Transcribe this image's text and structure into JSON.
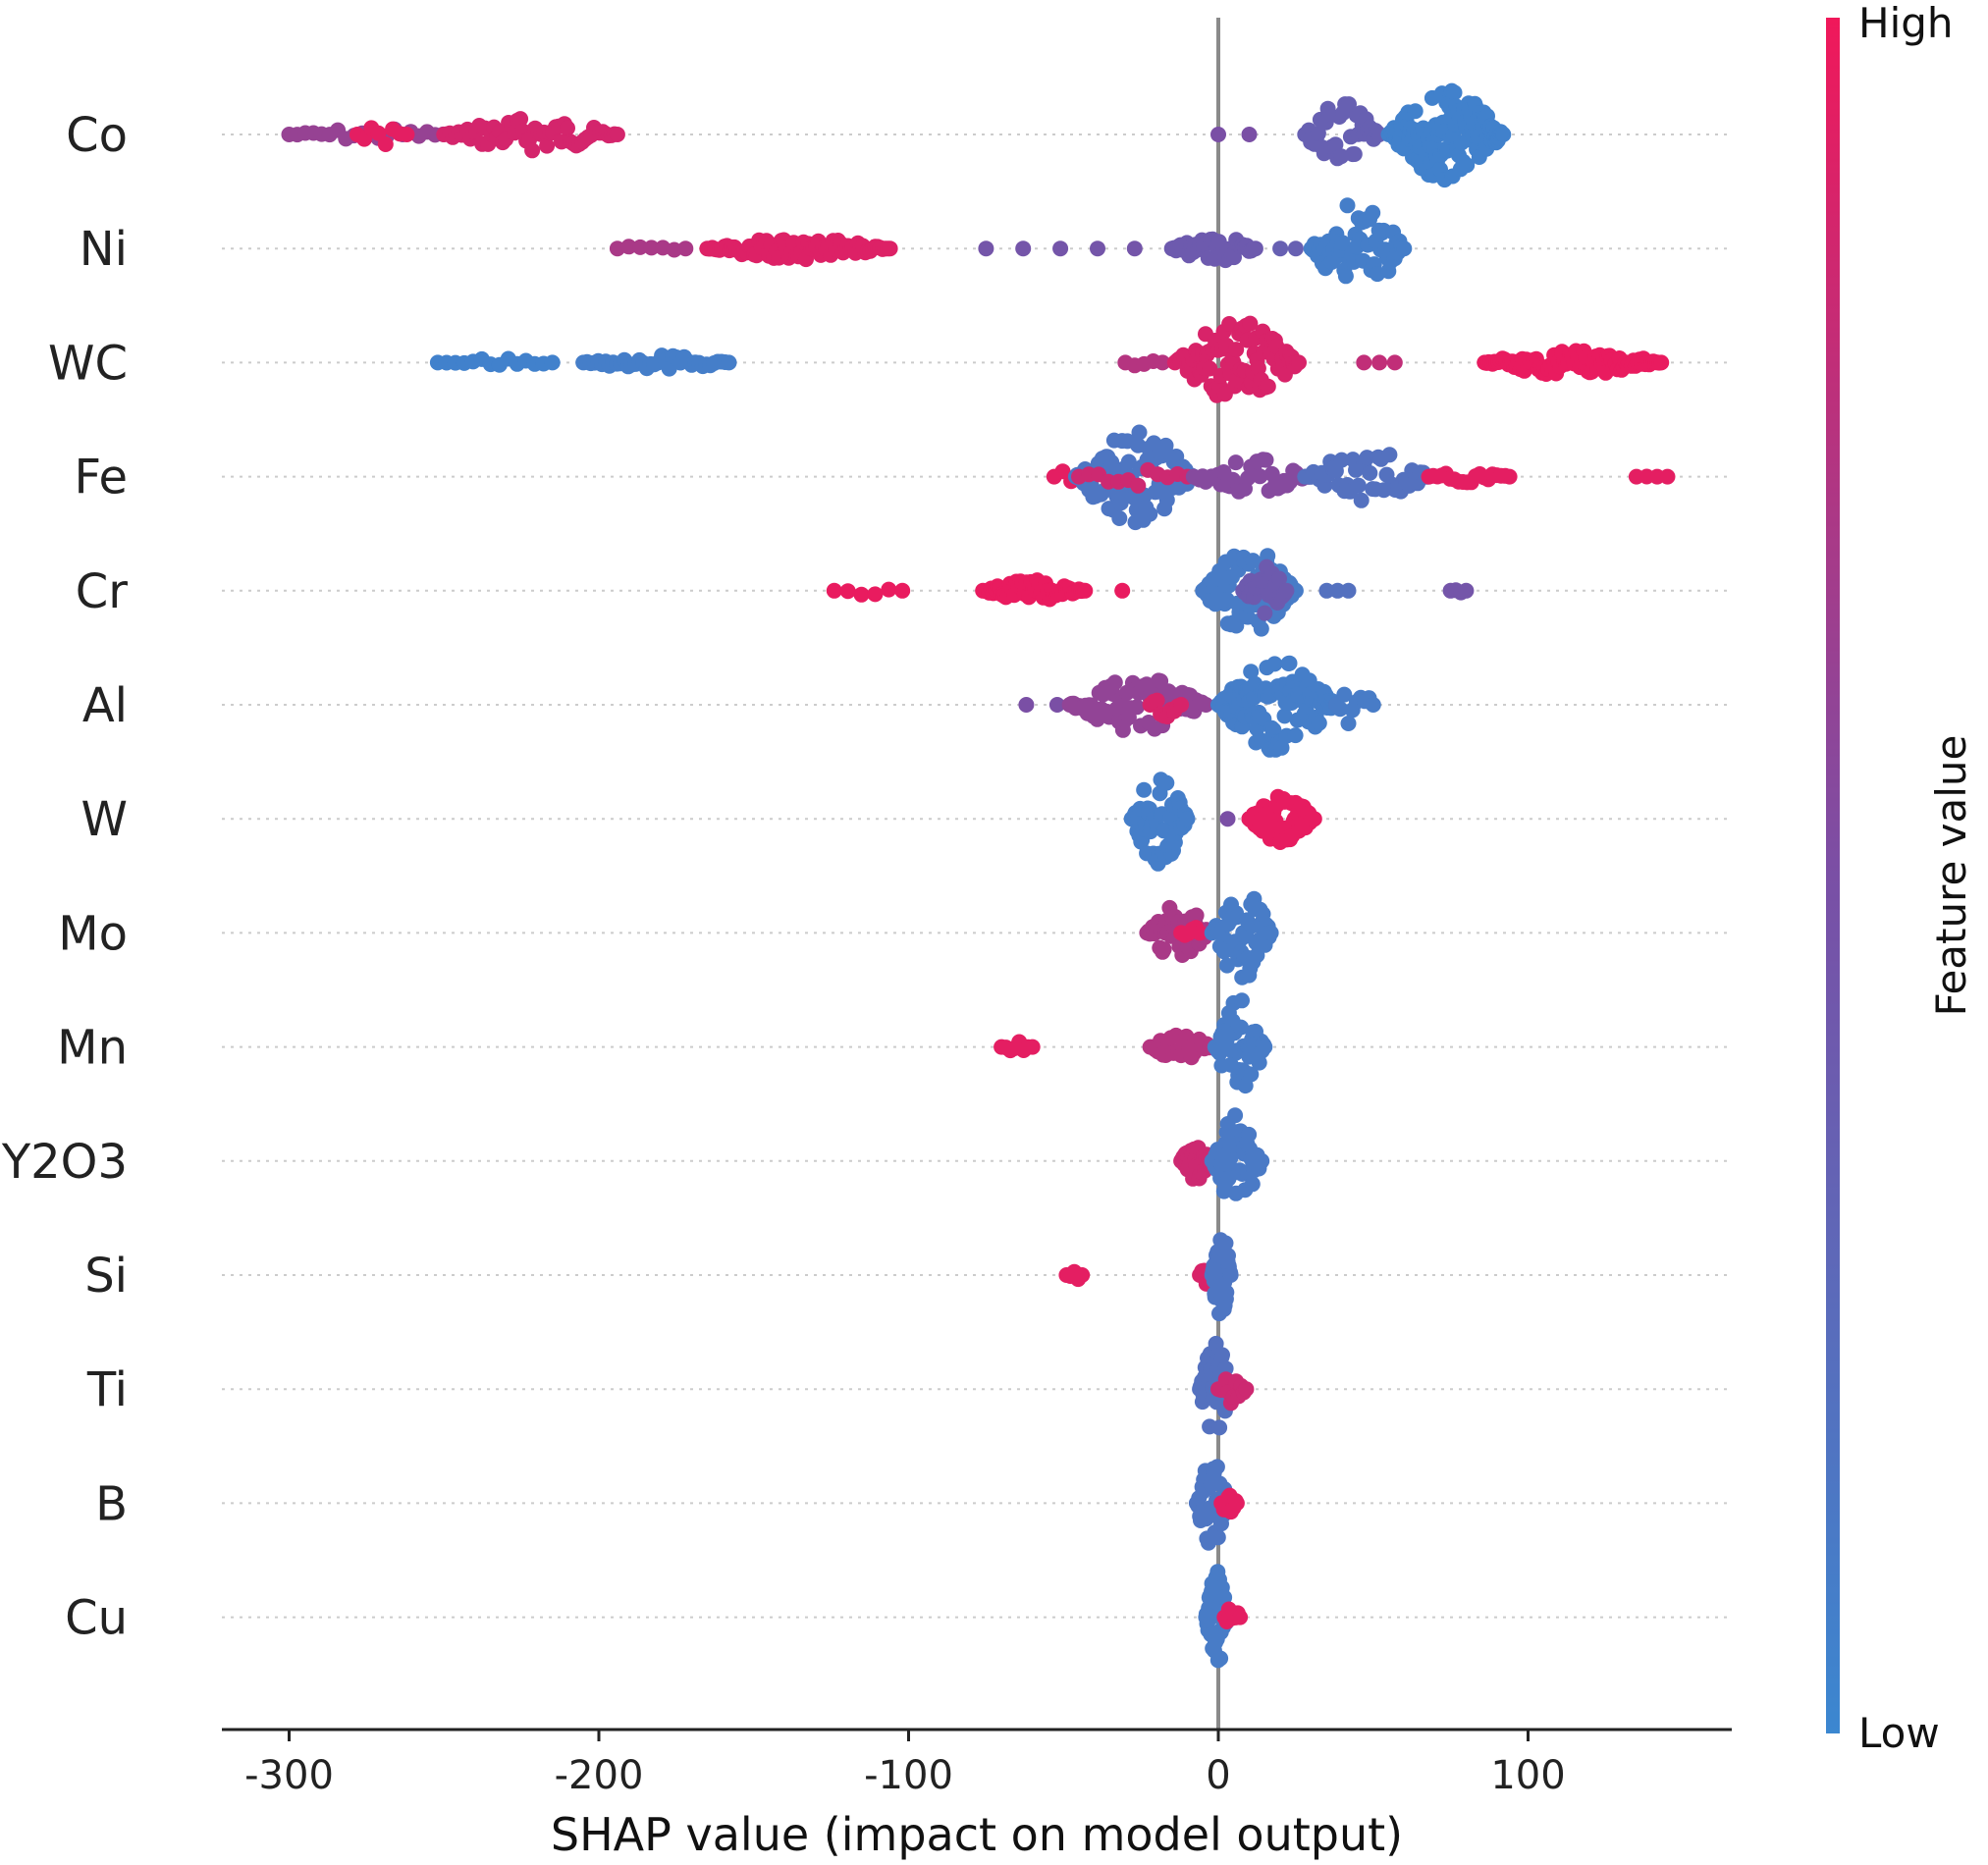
{
  "chart_data": {
    "type": "scatter",
    "subtype": "shap-beeswarm",
    "title": "",
    "xlabel": "SHAP value (impact on model output)",
    "ylabel": "",
    "xlim": [
      -323,
      166
    ],
    "xticks": [
      -300,
      -200,
      -100,
      0,
      100
    ],
    "xtick_labels": [
      "-300",
      "-200",
      "-100",
      "0",
      "100"
    ],
    "colorbar": {
      "label": "Feature value",
      "high": "High",
      "low": "Low",
      "low_color": "#3b87d0",
      "mid_color": "#7a4fa5",
      "high_color": "#f0185a"
    },
    "features": [
      {
        "name": "Co",
        "clusters": [
          {
            "from": -300,
            "to": -245,
            "fv": 0.62,
            "n": 22,
            "h": 0.06
          },
          {
            "from": -278,
            "to": -262,
            "fv": 0.95,
            "n": 8,
            "h": 0.1
          },
          {
            "from": -250,
            "to": -194,
            "fv": 0.88,
            "n": 60,
            "h": 0.16
          },
          {
            "from": 0,
            "to": 10,
            "fv": 0.5,
            "n": 2,
            "h": 0.0
          },
          {
            "from": 28,
            "to": 52,
            "fv": 0.35,
            "n": 40,
            "h": 0.3
          },
          {
            "from": 55,
            "to": 92,
            "fv": 0.05,
            "n": 130,
            "h": 0.42
          }
        ]
      },
      {
        "name": "Ni",
        "clusters": [
          {
            "from": -194,
            "to": -172,
            "fv": 0.7,
            "n": 7,
            "h": 0.04
          },
          {
            "from": -165,
            "to": -106,
            "fv": 0.92,
            "n": 75,
            "h": 0.1
          },
          {
            "from": -75,
            "to": -27,
            "fv": 0.45,
            "n": 5,
            "h": 0.0
          },
          {
            "from": -15,
            "to": 12,
            "fv": 0.4,
            "n": 40,
            "h": 0.12
          },
          {
            "from": 20,
            "to": 25,
            "fv": 0.35,
            "n": 2,
            "h": 0.0
          },
          {
            "from": 30,
            "to": 60,
            "fv": 0.08,
            "n": 60,
            "h": 0.42
          }
        ]
      },
      {
        "name": "WC",
        "clusters": [
          {
            "from": -252,
            "to": -215,
            "fv": 0.05,
            "n": 14,
            "h": 0.04
          },
          {
            "from": -205,
            "to": -158,
            "fv": 0.08,
            "n": 40,
            "h": 0.07
          },
          {
            "from": -30,
            "to": -18,
            "fv": 0.75,
            "n": 5,
            "h": 0.04
          },
          {
            "from": -14,
            "to": 26,
            "fv": 0.9,
            "n": 90,
            "h": 0.38
          },
          {
            "from": 47,
            "to": 57,
            "fv": 0.8,
            "n": 3,
            "h": 0.0
          },
          {
            "from": 86,
            "to": 143,
            "fv": 0.97,
            "n": 90,
            "h": 0.12
          }
        ]
      },
      {
        "name": "Fe",
        "clusters": [
          {
            "from": -53,
            "to": -42,
            "fv": 0.95,
            "n": 5,
            "h": 0.08
          },
          {
            "from": -46,
            "to": -8,
            "fv": 0.15,
            "n": 90,
            "h": 0.42
          },
          {
            "from": -45,
            "to": -10,
            "fv": 0.85,
            "n": 12,
            "h": 0.12
          },
          {
            "from": -8,
            "to": 30,
            "fv": 0.55,
            "n": 40,
            "h": 0.18
          },
          {
            "from": 28,
            "to": 68,
            "fv": 0.2,
            "n": 45,
            "h": 0.26
          },
          {
            "from": 68,
            "to": 94,
            "fv": 0.95,
            "n": 20,
            "h": 0.06
          },
          {
            "from": 135,
            "to": 145,
            "fv": 0.95,
            "n": 4,
            "h": 0.06
          }
        ]
      },
      {
        "name": "Cr",
        "clusters": [
          {
            "from": -124,
            "to": -102,
            "fv": 0.97,
            "n": 6,
            "h": 0.04
          },
          {
            "from": -76,
            "to": -43,
            "fv": 0.97,
            "n": 50,
            "h": 0.1
          },
          {
            "from": -31,
            "to": -31,
            "fv": 0.97,
            "n": 1,
            "h": 0.0
          },
          {
            "from": -5,
            "to": 25,
            "fv": 0.1,
            "n": 90,
            "h": 0.4
          },
          {
            "from": 8,
            "to": 22,
            "fv": 0.4,
            "n": 25,
            "h": 0.22
          },
          {
            "from": 35,
            "to": 42,
            "fv": 0.2,
            "n": 3,
            "h": 0.0
          },
          {
            "from": 75,
            "to": 80,
            "fv": 0.45,
            "n": 4,
            "h": 0.04
          }
        ]
      },
      {
        "name": "Al",
        "clusters": [
          {
            "from": -62,
            "to": -52,
            "fv": 0.5,
            "n": 2,
            "h": 0.0
          },
          {
            "from": -48,
            "to": -4,
            "fv": 0.6,
            "n": 70,
            "h": 0.25
          },
          {
            "from": -22,
            "to": -12,
            "fv": 0.9,
            "n": 10,
            "h": 0.12
          },
          {
            "from": 0,
            "to": 38,
            "fv": 0.08,
            "n": 120,
            "h": 0.42
          },
          {
            "from": 38,
            "to": 50,
            "fv": 0.1,
            "n": 10,
            "h": 0.22
          }
        ]
      },
      {
        "name": "W",
        "clusters": [
          {
            "from": -28,
            "to": -10,
            "fv": 0.08,
            "n": 60,
            "h": 0.42
          },
          {
            "from": 3,
            "to": 10,
            "fv": 0.5,
            "n": 2,
            "h": 0.0
          },
          {
            "from": 10,
            "to": 31,
            "fv": 0.96,
            "n": 60,
            "h": 0.22
          }
        ]
      },
      {
        "name": "Mo",
        "clusters": [
          {
            "from": -23,
            "to": -3,
            "fv": 0.7,
            "n": 45,
            "h": 0.28
          },
          {
            "from": -12,
            "to": -6,
            "fv": 0.95,
            "n": 6,
            "h": 0.12
          },
          {
            "from": -2,
            "to": 17,
            "fv": 0.1,
            "n": 60,
            "h": 0.42
          }
        ]
      },
      {
        "name": "Mn",
        "clusters": [
          {
            "from": -70,
            "to": -60,
            "fv": 0.95,
            "n": 8,
            "h": 0.06
          },
          {
            "from": -22,
            "to": -2,
            "fv": 0.75,
            "n": 25,
            "h": 0.12
          },
          {
            "from": -1,
            "to": 15,
            "fv": 0.1,
            "n": 55,
            "h": 0.44
          }
        ]
      },
      {
        "name": "Y2O3",
        "clusters": [
          {
            "from": -12,
            "to": -2,
            "fv": 0.85,
            "n": 30,
            "h": 0.18
          },
          {
            "from": -2,
            "to": 14,
            "fv": 0.12,
            "n": 55,
            "h": 0.42
          }
        ]
      },
      {
        "name": "Si",
        "clusters": [
          {
            "from": -49,
            "to": -44,
            "fv": 0.95,
            "n": 5,
            "h": 0.06
          },
          {
            "from": -6,
            "to": -1,
            "fv": 0.9,
            "n": 8,
            "h": 0.12
          },
          {
            "from": -2,
            "to": 4,
            "fv": 0.15,
            "n": 45,
            "h": 0.44
          }
        ]
      },
      {
        "name": "Ti",
        "clusters": [
          {
            "from": -6,
            "to": 4,
            "fv": 0.2,
            "n": 45,
            "h": 0.42
          },
          {
            "from": 0,
            "to": 9,
            "fv": 0.85,
            "n": 12,
            "h": 0.14
          }
        ]
      },
      {
        "name": "B",
        "clusters": [
          {
            "from": -7,
            "to": 3,
            "fv": 0.15,
            "n": 40,
            "h": 0.42
          },
          {
            "from": 1,
            "to": 6,
            "fv": 0.95,
            "n": 14,
            "h": 0.16
          }
        ]
      },
      {
        "name": "Cu",
        "clusters": [
          {
            "from": -4,
            "to": 3,
            "fv": 0.1,
            "n": 40,
            "h": 0.46
          },
          {
            "from": 2,
            "to": 7,
            "fv": 0.95,
            "n": 8,
            "h": 0.1
          }
        ]
      }
    ]
  }
}
